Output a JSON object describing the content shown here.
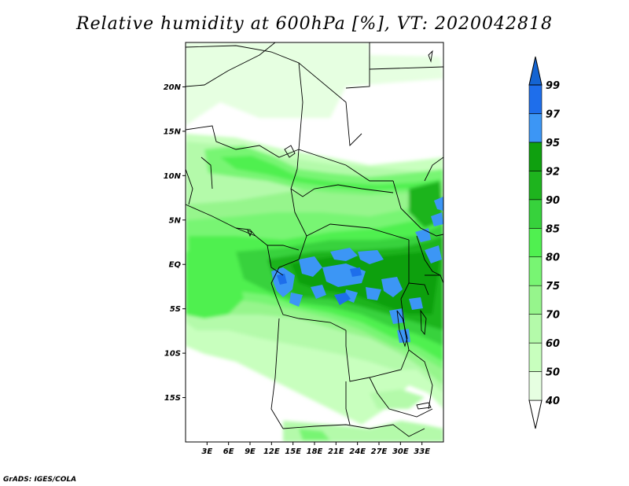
{
  "title": "Relative humidity at 600hPa [%], VT: 2020042818",
  "credit": "GrADS: IGES/COLA",
  "map": {
    "lon_range": [
      0,
      36
    ],
    "lat_range": [
      -20,
      25
    ],
    "lat_ticks": [
      {
        "value": 20,
        "label": "20N"
      },
      {
        "value": 15,
        "label": "15N"
      },
      {
        "value": 10,
        "label": "10N"
      },
      {
        "value": 5,
        "label": "5N"
      },
      {
        "value": 0,
        "label": "EQ"
      },
      {
        "value": -5,
        "label": "5S"
      },
      {
        "value": -10,
        "label": "10S"
      },
      {
        "value": -15,
        "label": "15S"
      }
    ],
    "lon_ticks": [
      {
        "value": 3,
        "label": "3E"
      },
      {
        "value": 6,
        "label": "6E"
      },
      {
        "value": 9,
        "label": "9E"
      },
      {
        "value": 12,
        "label": "12E"
      },
      {
        "value": 15,
        "label": "15E"
      },
      {
        "value": 18,
        "label": "18E"
      },
      {
        "value": 21,
        "label": "21E"
      },
      {
        "value": 24,
        "label": "24E"
      },
      {
        "value": 27,
        "label": "27E"
      },
      {
        "value": 30,
        "label": "30E"
      },
      {
        "value": 33,
        "label": "33E"
      }
    ]
  },
  "colorbar": {
    "levels": [
      {
        "label": "40",
        "color": "#e6ffe1"
      },
      {
        "label": "50",
        "color": "#c8ffbe"
      },
      {
        "label": "60",
        "color": "#b4faaa"
      },
      {
        "label": "70",
        "color": "#96f58c"
      },
      {
        "label": "75",
        "color": "#78f573"
      },
      {
        "label": "80",
        "color": "#50f050"
      },
      {
        "label": "85",
        "color": "#37d23c"
      },
      {
        "label": "90",
        "color": "#1eb41e"
      },
      {
        "label": "92",
        "color": "#0fa00f"
      },
      {
        "label": "95",
        "color": "#3c96f5"
      },
      {
        "label": "97",
        "color": "#1e6eeb"
      },
      {
        "label": "99",
        "color": "#1464d2"
      }
    ],
    "below_color": "#ffffff",
    "above_color": "#1464d2"
  }
}
